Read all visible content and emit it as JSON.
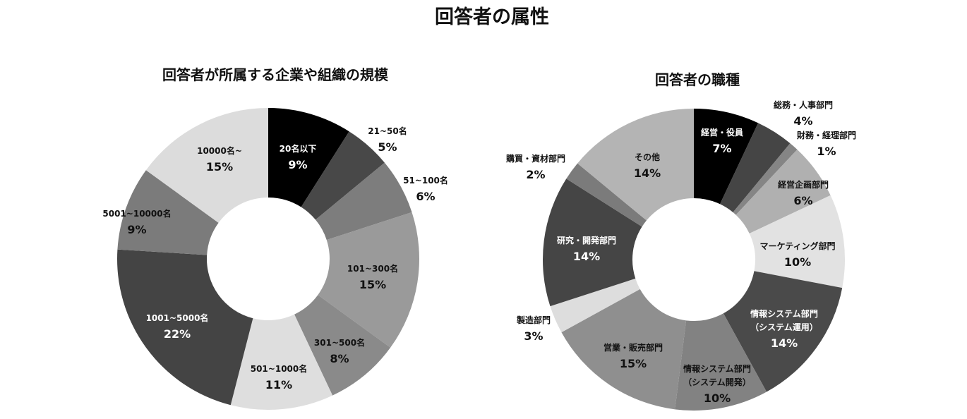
{
  "title": "回答者の属性",
  "chart_data": [
    {
      "type": "pie",
      "donut": true,
      "title": "回答者が所属する企業や組織の規模",
      "categories": [
        "20名以下",
        "21~50名",
        "51~100名",
        "101~300名",
        "301~500名",
        "501~1000名",
        "1001~5000名",
        "5001~10000名",
        "10000名~"
      ],
      "values": [
        9,
        5,
        6,
        15,
        8,
        11,
        22,
        9,
        15
      ],
      "value_labels": [
        "9%",
        "5%",
        "6%",
        "15%",
        "8%",
        "11%",
        "22%",
        "9%",
        "15%"
      ],
      "colors": [
        "#000000",
        "#484848",
        "#7d7d7d",
        "#9a9a9a",
        "#8a8a8a",
        "#dedede",
        "#444444",
        "#7b7b7b",
        "#dcdcdc"
      ]
    },
    {
      "type": "pie",
      "donut": true,
      "title": "回答者の職種",
      "categories": [
        "経営・役員",
        "総務・人事部門",
        "財務・経理部門",
        "経営企画部門",
        "マーケティング部門",
        "情報システム部門\n（システム運用）",
        "情報システム部門\n（システム開発）",
        "営業・販売部門",
        "製造部門",
        "研究・開発部門",
        "購買・資材部門",
        "その他"
      ],
      "values": [
        7,
        4,
        1,
        6,
        10,
        14,
        10,
        15,
        3,
        14,
        2,
        14
      ],
      "value_labels": [
        "7%",
        "4%",
        "1%",
        "6%",
        "10%",
        "14%",
        "10%",
        "15%",
        "3%",
        "14%",
        "2%",
        "14%"
      ],
      "colors": [
        "#000000",
        "#454545",
        "#858585",
        "#b0b0b0",
        "#e2e2e2",
        "#4a4a4a",
        "#828282",
        "#8f8f8f",
        "#dddddd",
        "#454545",
        "#7b7b7b",
        "#b4b4b4"
      ]
    }
  ]
}
